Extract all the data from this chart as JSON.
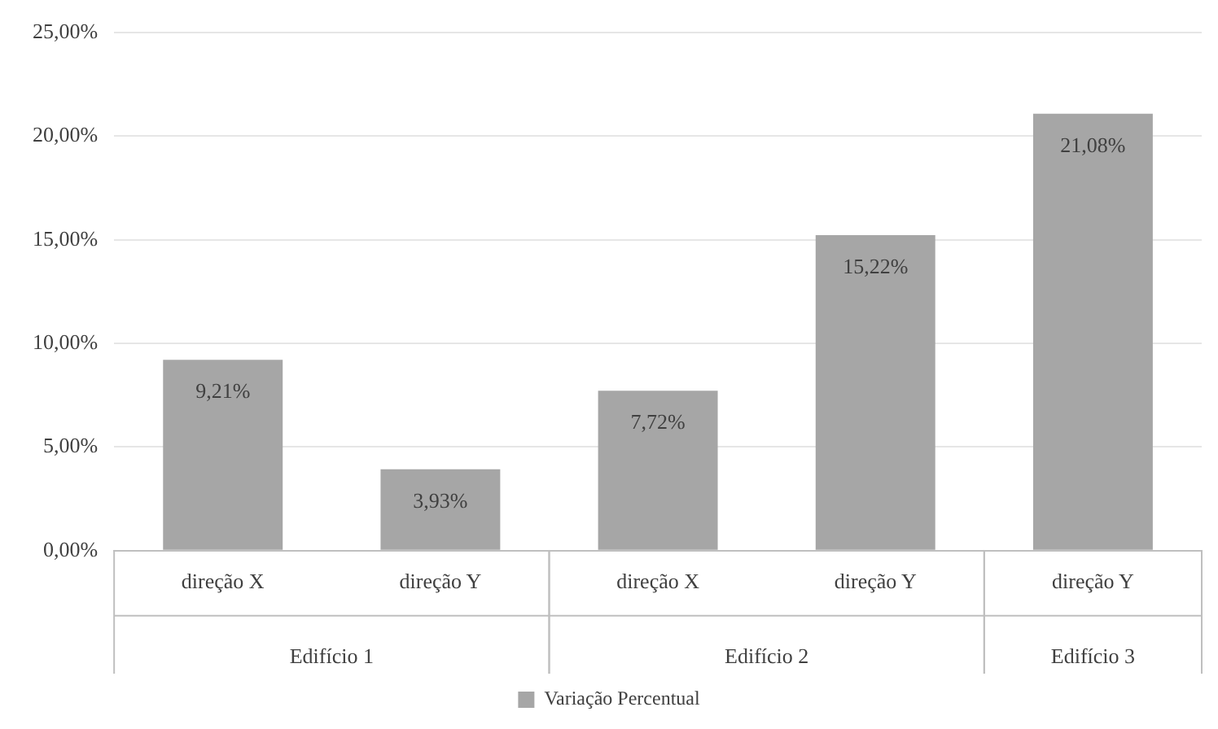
{
  "chart_data": {
    "type": "bar",
    "categories": [
      "direção X",
      "direção Y",
      "direção X",
      "direção Y",
      "direção Y"
    ],
    "series": [
      {
        "name": "Variação Percentual",
        "color": "#a6a6a6",
        "values": [
          9.21,
          3.93,
          7.72,
          15.22,
          21.08
        ],
        "value_labels": [
          "9,21%",
          "3,93%",
          "7,72%",
          "15,22%",
          "21,08%"
        ]
      }
    ],
    "ylim": [
      0,
      25
    ],
    "yticks": [
      {
        "value": 0,
        "label": "0,00%"
      },
      {
        "value": 5,
        "label": "5,00%"
      },
      {
        "value": 10,
        "label": "10,00%"
      },
      {
        "value": 15,
        "label": "15,00%"
      },
      {
        "value": 20,
        "label": "20,00%"
      },
      {
        "value": 25,
        "label": "25,00%"
      }
    ],
    "annotations": [
      "Edifício 1",
      "Edifício 2",
      "Edifício 3"
    ],
    "grid": "y",
    "legend": "bottom"
  }
}
